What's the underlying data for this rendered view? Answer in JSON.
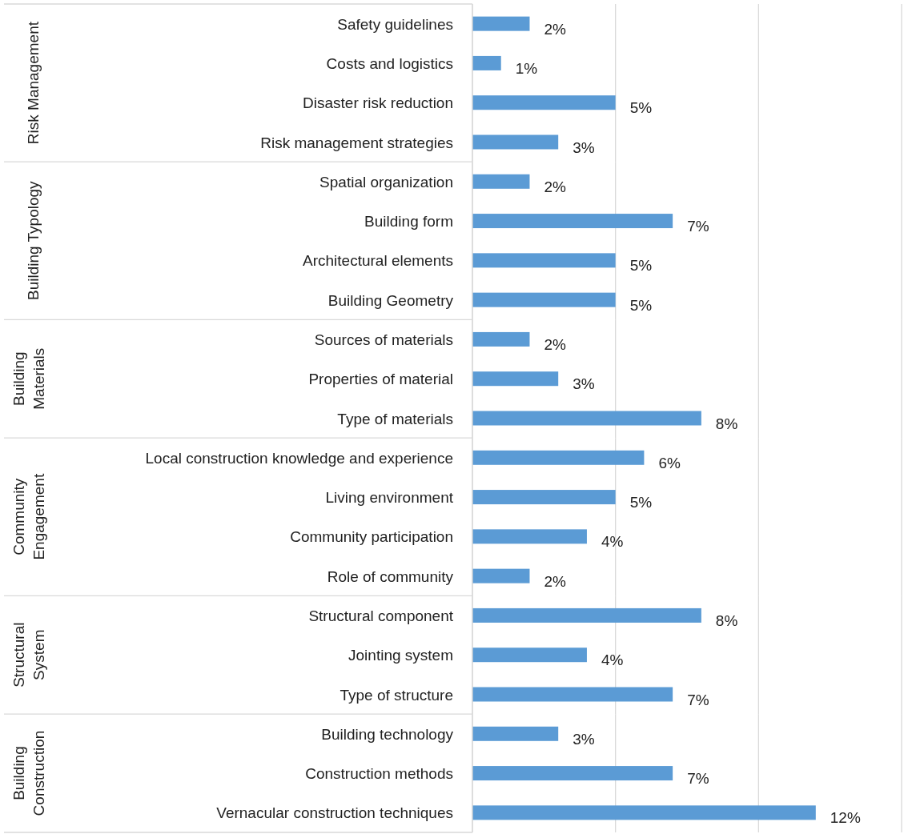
{
  "chart_data": [
    {
      "type": "bar",
      "orientation": "horizontal",
      "ylabel": "Risk Management",
      "data_labels": true,
      "categories": [
        "Safety guidelines",
        "Costs and logistics",
        "Disaster risk reduction",
        "Risk management strategies"
      ],
      "values": [
        2,
        1,
        5,
        3
      ],
      "value_labels": [
        "2%",
        "1%",
        "5%",
        "3%"
      ],
      "color": "#5b9bd5",
      "xlim": [
        0,
        15
      ],
      "xticks": [
        {
          "value": 0,
          "label": null
        },
        {
          "value": 5,
          "label": null
        },
        {
          "value": 10,
          "label": null
        },
        {
          "value": 15,
          "label": null
        }
      ],
      "grid": "x",
      "tick_labels": "y"
    },
    {
      "type": "bar",
      "orientation": "horizontal",
      "ylabel": "Building Typology",
      "data_labels": true,
      "categories": [
        "Spatial organization",
        "Building form",
        "Architectural elements",
        "Building Geometry"
      ],
      "values": [
        2,
        7,
        5,
        5
      ],
      "value_labels": [
        "2%",
        "7%",
        "5%",
        "5%"
      ],
      "color": "#5b9bd5",
      "xlim": [
        0,
        15
      ],
      "xticks": [
        {
          "value": 0,
          "label": null
        },
        {
          "value": 5,
          "label": null
        },
        {
          "value": 10,
          "label": null
        },
        {
          "value": 15,
          "label": null
        }
      ],
      "grid": "x",
      "tick_labels": "y"
    },
    {
      "type": "bar",
      "orientation": "horizontal",
      "ylabel": "Building Materials",
      "data_labels": true,
      "categories": [
        "Sources of materials",
        "Properties of material",
        "Type of materials"
      ],
      "values": [
        2,
        3,
        8
      ],
      "value_labels": [
        "2%",
        "3%",
        "8%"
      ],
      "color": "#5b9bd5",
      "xlim": [
        0,
        15
      ],
      "xticks": [
        {
          "value": 0,
          "label": null
        },
        {
          "value": 5,
          "label": null
        },
        {
          "value": 10,
          "label": null
        },
        {
          "value": 15,
          "label": null
        }
      ],
      "grid": "x",
      "tick_labels": "y"
    },
    {
      "type": "bar",
      "orientation": "horizontal",
      "ylabel": "Community Engagement",
      "data_labels": true,
      "categories": [
        "Local construction knowledge and experience",
        "Living environment",
        "Community participation",
        "Role of community"
      ],
      "values": [
        6,
        5,
        4,
        2
      ],
      "value_labels": [
        "6%",
        "5%",
        "4%",
        "2%"
      ],
      "color": "#5b9bd5",
      "xlim": [
        0,
        15
      ],
      "xticks": [
        {
          "value": 0,
          "label": null
        },
        {
          "value": 5,
          "label": null
        },
        {
          "value": 10,
          "label": null
        },
        {
          "value": 15,
          "label": null
        }
      ],
      "grid": "x",
      "tick_labels": "y"
    },
    {
      "type": "bar",
      "orientation": "horizontal",
      "ylabel": "Structural System",
      "data_labels": true,
      "categories": [
        "Structural component",
        "Jointing system",
        "Type of structure"
      ],
      "values": [
        8,
        4,
        7
      ],
      "value_labels": [
        "8%",
        "4%",
        "7%"
      ],
      "color": "#5b9bd5",
      "xlim": [
        0,
        15
      ],
      "xticks": [
        {
          "value": 0,
          "label": null
        },
        {
          "value": 5,
          "label": null
        },
        {
          "value": 10,
          "label": null
        },
        {
          "value": 15,
          "label": null
        }
      ],
      "grid": "x",
      "tick_labels": "y"
    },
    {
      "type": "bar",
      "orientation": "horizontal",
      "ylabel": "Building Construction",
      "data_labels": true,
      "categories": [
        "Building technology",
        "Construction methods",
        "Vernacular construction techniques"
      ],
      "values": [
        3,
        7,
        12
      ],
      "value_labels": [
        "3%",
        "7%",
        "12%"
      ],
      "color": "#5b9bd5",
      "xlim": [
        0,
        15
      ],
      "xticks": [
        {
          "value": 0,
          "label": null
        },
        {
          "value": 5,
          "label": null
        },
        {
          "value": 10,
          "label": null
        },
        {
          "value": 15,
          "label": null
        }
      ],
      "grid": "x",
      "tick_labels": "y"
    }
  ]
}
